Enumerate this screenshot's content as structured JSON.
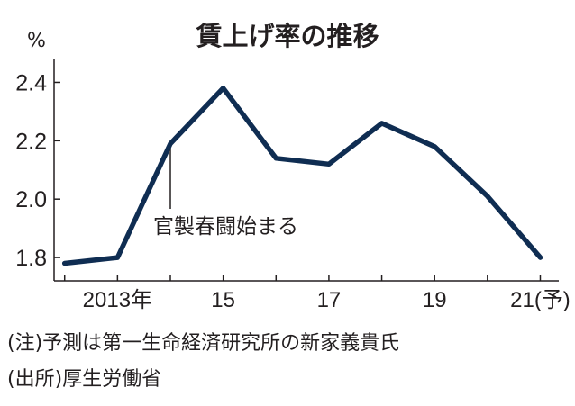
{
  "chart_data": {
    "type": "line",
    "title": "賃上げ率の推移",
    "unit": "%",
    "x": [
      2012,
      2013,
      2014,
      2015,
      2016,
      2017,
      2018,
      2019,
      2020,
      2021
    ],
    "values": [
      1.78,
      1.8,
      2.19,
      2.38,
      2.14,
      2.12,
      2.26,
      2.18,
      2.01,
      1.8
    ],
    "x_tick_labels": [
      {
        "x": 2013,
        "label": "2013年"
      },
      {
        "x": 2015,
        "label": "15"
      },
      {
        "x": 2017,
        "label": "17"
      },
      {
        "x": 2019,
        "label": "19"
      },
      {
        "x": 2021,
        "label": "21(予)"
      }
    ],
    "y_ticks": [
      {
        "value": 1.8,
        "label": "1.8"
      },
      {
        "value": 2.0,
        "label": "2.0"
      },
      {
        "value": 2.2,
        "label": "2.2"
      },
      {
        "value": 2.4,
        "label": "2.4"
      }
    ],
    "xlim": [
      2011.8,
      2021.35
    ],
    "ylim": [
      1.72,
      2.46
    ],
    "annotations": [
      {
        "x": 2014,
        "text": "官製春闘始まる"
      }
    ],
    "grid": false,
    "legend": "none",
    "colors": {
      "line": "#0f2d52",
      "axis": "#231f20"
    }
  },
  "footnotes": {
    "note": "(注)予測は第一生命経済研究所の新家義貴氏",
    "source": "(出所)厚生労働省"
  }
}
